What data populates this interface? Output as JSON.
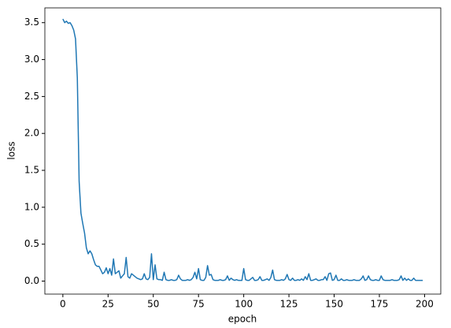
{
  "chart_data": {
    "type": "line",
    "xlabel": "epoch",
    "ylabel": "loss",
    "x": [
      0,
      1,
      2,
      3,
      4,
      5,
      6,
      7,
      8,
      9,
      10,
      11,
      12,
      13,
      14,
      15,
      16,
      17,
      18,
      19,
      20,
      21,
      22,
      23,
      24,
      25,
      26,
      27,
      28,
      29,
      30,
      31,
      32,
      33,
      34,
      35,
      36,
      37,
      38,
      39,
      40,
      41,
      42,
      43,
      44,
      45,
      46,
      47,
      48,
      49,
      50,
      51,
      52,
      53,
      54,
      55,
      56,
      57,
      58,
      59,
      60,
      61,
      62,
      63,
      64,
      65,
      66,
      67,
      68,
      69,
      70,
      71,
      72,
      73,
      74,
      75,
      76,
      77,
      78,
      79,
      80,
      81,
      82,
      83,
      84,
      85,
      86,
      87,
      88,
      89,
      90,
      91,
      92,
      93,
      94,
      95,
      96,
      97,
      98,
      99,
      100,
      101,
      102,
      103,
      104,
      105,
      106,
      107,
      108,
      109,
      110,
      111,
      112,
      113,
      114,
      115,
      116,
      117,
      118,
      119,
      120,
      121,
      122,
      123,
      124,
      125,
      126,
      127,
      128,
      129,
      130,
      131,
      132,
      133,
      134,
      135,
      136,
      137,
      138,
      139,
      140,
      141,
      142,
      143,
      144,
      145,
      146,
      147,
      148,
      149,
      150,
      151,
      152,
      153,
      154,
      155,
      156,
      157,
      158,
      159,
      160,
      161,
      162,
      163,
      164,
      165,
      166,
      167,
      168,
      169,
      170,
      171,
      172,
      173,
      174,
      175,
      176,
      177,
      178,
      179,
      180,
      181,
      182,
      183,
      184,
      185,
      186,
      187,
      188,
      189,
      190,
      191,
      192,
      193,
      194,
      195,
      196,
      197,
      198,
      199
    ],
    "series": [
      {
        "color": "#1f77b4",
        "values": [
          3.55,
          3.5,
          3.52,
          3.49,
          3.5,
          3.46,
          3.4,
          3.28,
          2.75,
          1.35,
          0.92,
          0.78,
          0.65,
          0.45,
          0.37,
          0.41,
          0.37,
          0.29,
          0.22,
          0.2,
          0.2,
          0.15,
          0.1,
          0.12,
          0.18,
          0.1,
          0.17,
          0.08,
          0.3,
          0.1,
          0.12,
          0.14,
          0.04,
          0.07,
          0.1,
          0.32,
          0.06,
          0.04,
          0.1,
          0.08,
          0.06,
          0.04,
          0.03,
          0.02,
          0.03,
          0.1,
          0.03,
          0.02,
          0.05,
          0.37,
          0.02,
          0.22,
          0.03,
          0.02,
          0.02,
          0.01,
          0.12,
          0.02,
          0.01,
          0.01,
          0.02,
          0.01,
          0.01,
          0.02,
          0.08,
          0.03,
          0.01,
          0.01,
          0.01,
          0.02,
          0.01,
          0.02,
          0.05,
          0.12,
          0.03,
          0.17,
          0.02,
          0.01,
          0.01,
          0.05,
          0.21,
          0.08,
          0.09,
          0.02,
          0.01,
          0.01,
          0.01,
          0.02,
          0.01,
          0.01,
          0.02,
          0.07,
          0.01,
          0.04,
          0.02,
          0.01,
          0.02,
          0.01,
          0.01,
          0.01,
          0.17,
          0.02,
          0.01,
          0.01,
          0.03,
          0.05,
          0.01,
          0.01,
          0.02,
          0.06,
          0.01,
          0.01,
          0.02,
          0.03,
          0.01,
          0.05,
          0.15,
          0.02,
          0.01,
          0.01,
          0.01,
          0.02,
          0.01,
          0.03,
          0.09,
          0.02,
          0.01,
          0.04,
          0.01,
          0.01,
          0.02,
          0.01,
          0.03,
          0.01,
          0.06,
          0.02,
          0.1,
          0.01,
          0.01,
          0.02,
          0.03,
          0.01,
          0.01,
          0.02,
          0.02,
          0.06,
          0.01,
          0.1,
          0.11,
          0.01,
          0.02,
          0.08,
          0.01,
          0.01,
          0.03,
          0.01,
          0.01,
          0.02,
          0.01,
          0.01,
          0.01,
          0.02,
          0.01,
          0.01,
          0.01,
          0.03,
          0.07,
          0.01,
          0.02,
          0.07,
          0.02,
          0.01,
          0.01,
          0.02,
          0.01,
          0.01,
          0.07,
          0.02,
          0.01,
          0.01,
          0.01,
          0.01,
          0.02,
          0.01,
          0.01,
          0.01,
          0.02,
          0.07,
          0.01,
          0.04,
          0.01,
          0.03,
          0.01,
          0.01,
          0.04,
          0.01,
          0.01,
          0.01,
          0.01,
          0.01
        ]
      }
    ],
    "xlim": [
      -9.95,
      208.95
    ],
    "ylim": [
      -0.176,
      3.7
    ],
    "xticks": [
      0,
      25,
      50,
      75,
      100,
      125,
      150,
      175,
      200
    ],
    "yticks": [
      {
        "value": 0,
        "label": "0.0"
      },
      0.5,
      {
        "value": 1,
        "label": "1.0"
      },
      1.5,
      {
        "value": 2,
        "label": "2.0"
      },
      2.5,
      {
        "value": 3,
        "label": "3.0"
      },
      3.5
    ]
  }
}
